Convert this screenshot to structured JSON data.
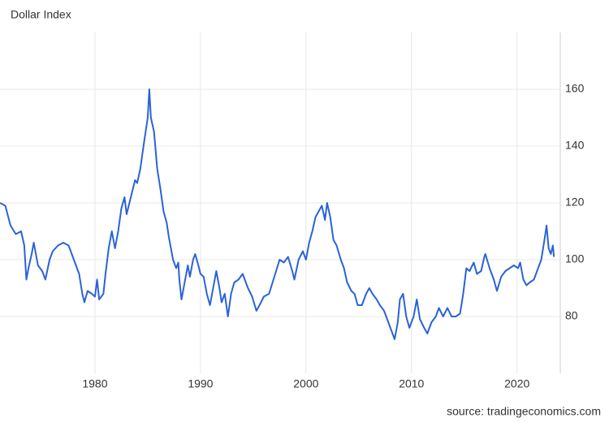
{
  "chart_data": {
    "type": "line",
    "title": "Dollar Index",
    "source": "source: tradingeconomics.com",
    "xlim": [
      1971,
      2024.1
    ],
    "xticks": [
      1980,
      1990,
      2000,
      2010,
      2020
    ],
    "ylim": [
      60,
      180
    ],
    "yticks": [
      80,
      100,
      120,
      140,
      160
    ],
    "grid": true,
    "series": [
      {
        "name": "Dollar Index",
        "color": "#2a63d6",
        "x": [
          1971.0,
          1971.5,
          1972.0,
          1972.5,
          1973.0,
          1973.3,
          1973.5,
          1973.7,
          1974.0,
          1974.2,
          1974.6,
          1975.0,
          1975.3,
          1975.7,
          1976.0,
          1976.5,
          1977.0,
          1977.5,
          1978.0,
          1978.5,
          1978.8,
          1979.0,
          1979.3,
          1979.7,
          1980.0,
          1980.2,
          1980.4,
          1980.8,
          1981.0,
          1981.3,
          1981.6,
          1981.9,
          1982.2,
          1982.5,
          1982.8,
          1983.0,
          1983.4,
          1983.8,
          1984.0,
          1984.3,
          1984.6,
          1984.8,
          1985.0,
          1985.15,
          1985.3,
          1985.6,
          1985.9,
          1986.2,
          1986.5,
          1986.8,
          1987.0,
          1987.4,
          1987.7,
          1987.9,
          1988.0,
          1988.2,
          1988.5,
          1988.8,
          1989.0,
          1989.3,
          1989.5,
          1989.8,
          1990.0,
          1990.3,
          1990.6,
          1990.9,
          1991.2,
          1991.5,
          1991.8,
          1992.0,
          1992.3,
          1992.6,
          1992.9,
          1993.2,
          1993.6,
          1994.0,
          1994.5,
          1994.9,
          1995.3,
          1995.6,
          1996.0,
          1996.5,
          1997.0,
          1997.5,
          1997.9,
          1998.3,
          1998.7,
          1998.9,
          1999.3,
          1999.7,
          2000.0,
          2000.3,
          2000.6,
          2000.9,
          2001.2,
          2001.5,
          2001.8,
          2002.0,
          2002.3,
          2002.6,
          2002.9,
          2003.3,
          2003.6,
          2003.9,
          2004.3,
          2004.6,
          2004.9,
          2005.3,
          2005.7,
          2006.0,
          2006.3,
          2006.7,
          2007.0,
          2007.4,
          2007.8,
          2008.2,
          2008.4,
          2008.7,
          2008.9,
          2009.2,
          2009.5,
          2009.8,
          2010.2,
          2010.5,
          2010.8,
          2011.2,
          2011.5,
          2011.9,
          2012.3,
          2012.6,
          2013.0,
          2013.4,
          2013.8,
          2014.2,
          2014.6,
          2014.9,
          2015.2,
          2015.5,
          2015.9,
          2016.2,
          2016.6,
          2016.9,
          2017.0,
          2017.4,
          2017.8,
          2018.1,
          2018.5,
          2018.9,
          2019.3,
          2019.7,
          2020.1,
          2020.3,
          2020.6,
          2020.9,
          2021.2,
          2021.6,
          2021.9,
          2022.3,
          2022.6,
          2022.8,
          2023.0,
          2023.2,
          2023.4,
          2023.5
        ],
        "values": [
          120,
          119,
          112,
          109,
          110,
          105,
          93,
          97,
          102,
          106,
          98,
          96,
          93,
          100,
          103,
          105,
          106,
          105,
          100,
          95,
          88,
          85,
          89,
          88,
          87,
          93,
          86,
          88,
          95,
          104,
          110,
          104,
          110,
          118,
          122,
          116,
          122,
          128,
          127,
          132,
          140,
          145,
          150,
          160,
          150,
          145,
          132,
          125,
          117,
          113,
          108,
          100,
          97,
          99,
          93,
          86,
          92,
          98,
          94,
          100,
          102,
          98,
          95,
          94,
          88,
          84,
          90,
          96,
          90,
          85,
          88,
          80,
          88,
          92,
          93,
          95,
          90,
          87,
          82,
          84,
          87,
          88,
          94,
          100,
          99,
          101,
          96,
          93,
          100,
          103,
          100,
          106,
          110,
          115,
          117,
          119,
          114,
          120,
          115,
          107,
          105,
          100,
          97,
          92,
          89,
          88,
          84,
          84,
          88,
          90,
          88,
          86,
          84,
          82,
          78,
          74,
          72,
          78,
          86,
          88,
          80,
          76,
          80,
          86,
          79,
          76,
          74,
          78,
          80,
          83,
          80,
          83,
          80,
          80,
          81,
          88,
          97,
          96,
          99,
          95,
          96,
          101,
          102,
          97,
          93,
          89,
          94,
          96,
          97,
          98,
          97,
          99,
          93,
          91,
          92,
          93,
          96,
          100,
          107,
          112,
          104,
          102,
          105,
          101
        ]
      }
    ]
  }
}
